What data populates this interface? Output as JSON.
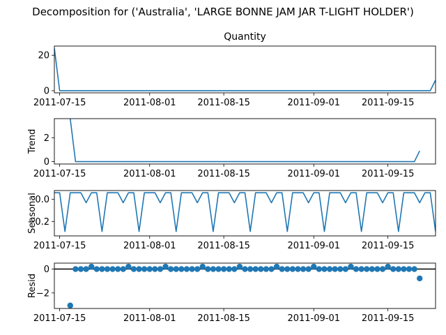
{
  "chart_data": {
    "type": "line",
    "title": "Decomposition for ('Australia', 'LARGE BONNE JAM JAR  T-LIGHT HOLDER')",
    "colors": {
      "series": "#1f77b4",
      "frame": "#000000",
      "zero_line": "#000000"
    },
    "x_axis": {
      "start": "2011-07-14",
      "end": "2011-09-24",
      "ticks": [
        "2011-07-15",
        "2011-08-01",
        "2011-08-15",
        "2011-09-01",
        "2011-09-15"
      ]
    },
    "panels": [
      {
        "name": "Quantity",
        "title": "Quantity",
        "ylabel": "",
        "kind": "line",
        "ylim": [
          -1.2,
          25.2
        ],
        "yticks": [
          "0",
          "20"
        ],
        "points": [
          [
            "2011-07-14",
            24
          ],
          [
            "2011-07-15",
            0
          ],
          [
            "2011-09-23",
            0
          ],
          [
            "2011-09-24",
            6
          ]
        ]
      },
      {
        "name": "Trend",
        "title": "",
        "ylabel": "Trend",
        "kind": "line",
        "ylim": [
          -0.2,
          3.6
        ],
        "yticks": [
          "0",
          "2"
        ],
        "points": [
          [
            "2011-07-17",
            3.6
          ],
          [
            "2011-07-18",
            0
          ],
          [
            "2011-09-20",
            0
          ],
          [
            "2011-09-21",
            0.9
          ]
        ]
      },
      {
        "name": "Seasonal",
        "title": "",
        "ylabel": "Seasonal",
        "kind": "seasonal",
        "ylim": [
          -0.33,
          0.08
        ],
        "yticks": [
          "0.0",
          "-0.2"
        ],
        "period": 7,
        "first_date": "2011-07-14",
        "last_date": "2011-09-24",
        "pattern": [
          0.06,
          0.06,
          -0.29,
          0.06,
          0.06,
          0.06,
          -0.03
        ]
      },
      {
        "name": "Resid",
        "title": "",
        "ylabel": "Resid",
        "kind": "scatter",
        "ylim": [
          -3.3,
          0.5
        ],
        "yticks": [
          "0",
          "-2"
        ],
        "first_date": "2011-07-17",
        "last_date": "2011-09-21",
        "base_value": 0,
        "special": {
          "2011-07-17": -3.05,
          "2011-09-21": -0.78,
          "2011-07-21": 0.2,
          "2011-07-28": 0.2,
          "2011-08-04": 0.2,
          "2011-08-11": 0.2,
          "2011-08-18": 0.2,
          "2011-08-25": 0.2,
          "2011-09-01": 0.2,
          "2011-09-08": 0.2,
          "2011-09-15": 0.2
        }
      }
    ]
  }
}
